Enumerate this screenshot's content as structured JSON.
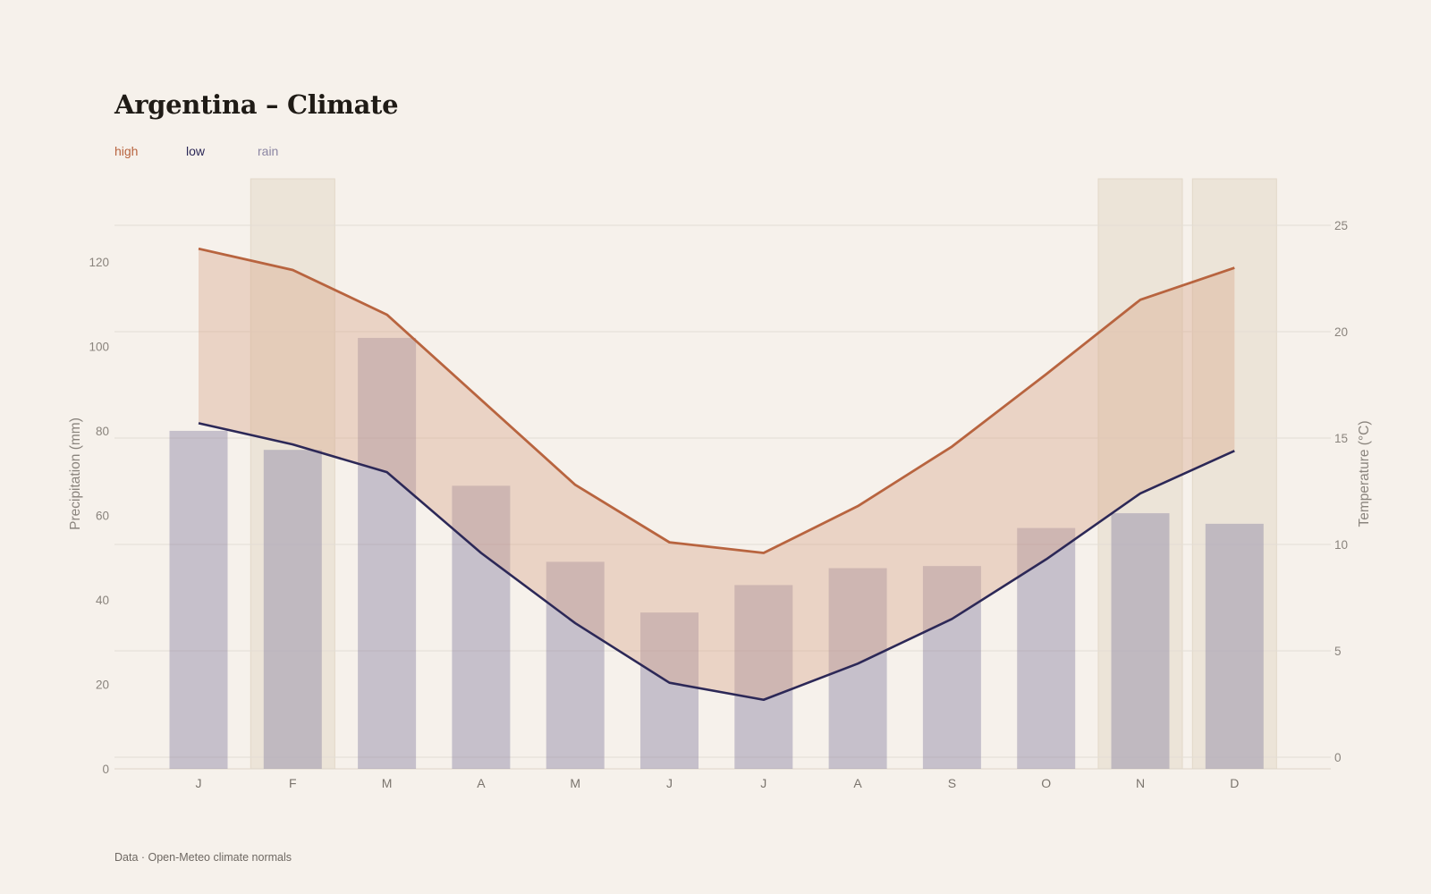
{
  "title": "Argentina – Climate",
  "legend": {
    "high": "high",
    "low": "low",
    "rain": "rain"
  },
  "source": "Data · Open-Meteo climate normals",
  "colors": {
    "high": "#b8643f",
    "low": "#2c2857",
    "rain": "#8c86a3",
    "band": "#e8d3c5",
    "highlight": "#ece4d8",
    "background": "#f6f1eb"
  },
  "chart_data": {
    "type": "bar",
    "categories": [
      "J",
      "F",
      "M",
      "A",
      "M",
      "J",
      "J",
      "A",
      "S",
      "O",
      "N",
      "D"
    ],
    "series": [
      {
        "name": "rain",
        "type": "bar",
        "axis": "left",
        "values": [
          80,
          75.5,
          102,
          67,
          49,
          37,
          43.5,
          47.5,
          48,
          57,
          60.5,
          58
        ]
      },
      {
        "name": "high",
        "type": "line",
        "axis": "right",
        "values": [
          23.9,
          22.9,
          20.8,
          16.8,
          12.8,
          10.1,
          9.6,
          11.8,
          14.6,
          18.0,
          21.5,
          23.0
        ]
      },
      {
        "name": "low",
        "type": "line",
        "axis": "right",
        "values": [
          15.7,
          14.7,
          13.4,
          9.6,
          6.3,
          3.5,
          2.7,
          4.4,
          6.5,
          9.3,
          12.4,
          14.4
        ]
      }
    ],
    "highlighted_months": [
      1,
      10,
      11
    ],
    "ylabel": "Precipitation (mm)",
    "y2label": "Temperature (°C)",
    "ylim": [
      0,
      130
    ],
    "y2lim": [
      0,
      25
    ],
    "yticks": [
      0,
      20,
      40,
      60,
      80,
      100,
      120
    ],
    "y2ticks": [
      0,
      5,
      10,
      15,
      20,
      25
    ],
    "grid": true
  }
}
